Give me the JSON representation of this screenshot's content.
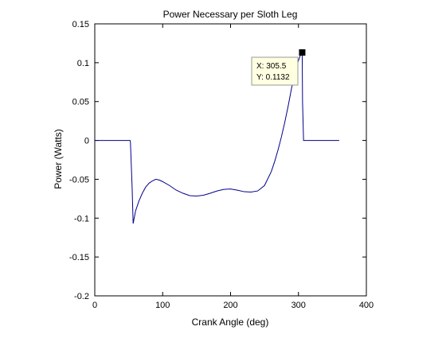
{
  "chart_data": {
    "type": "line",
    "title": "Power Necessary per Sloth Leg",
    "xlabel": "Crank Angle (deg)",
    "ylabel": "Power (Watts)",
    "xlim": [
      0,
      400
    ],
    "ylim": [
      -0.2,
      0.15
    ],
    "xticks": [
      0,
      100,
      200,
      300,
      400
    ],
    "xtick_labels": [
      "0",
      "100",
      "200",
      "300",
      "400"
    ],
    "yticks": [
      -0.2,
      -0.15,
      -0.1,
      -0.05,
      0,
      0.05,
      0.1,
      0.15
    ],
    "ytick_labels": [
      "-0.2",
      "-0.15",
      "-0.1",
      "-0.05",
      "0",
      "0.05",
      "0.1",
      "0.15"
    ],
    "grid": false,
    "series": [
      {
        "color": "#00008b",
        "x": [
          0,
          52,
          52.5,
          55,
          56.5,
          60,
          65,
          70,
          75,
          80,
          85,
          90,
          95,
          100,
          110,
          120,
          130,
          140,
          150,
          160,
          170,
          180,
          190,
          200,
          210,
          220,
          230,
          240,
          250,
          260,
          265,
          270,
          275,
          280,
          285,
          290,
          295,
          300,
          303,
          305.5,
          306,
          307.5,
          310,
          320,
          360
        ],
        "y": [
          0,
          0,
          -0.002,
          -0.06,
          -0.107,
          -0.091,
          -0.078,
          -0.068,
          -0.06,
          -0.055,
          -0.052,
          -0.05,
          -0.051,
          -0.053,
          -0.058,
          -0.064,
          -0.068,
          -0.071,
          -0.0715,
          -0.0705,
          -0.068,
          -0.065,
          -0.063,
          -0.0625,
          -0.064,
          -0.066,
          -0.0665,
          -0.065,
          -0.058,
          -0.04,
          -0.027,
          -0.012,
          0.005,
          0.024,
          0.045,
          0.068,
          0.087,
          0.103,
          0.11,
          0.1132,
          0.05,
          0.0,
          0,
          0,
          0
        ]
      }
    ],
    "datatip": {
      "x": 305.5,
      "y": 0.1132,
      "x_text": "X: 305.5",
      "y_text": "Y: 0.1132",
      "box_color": "#ffffe1"
    }
  }
}
